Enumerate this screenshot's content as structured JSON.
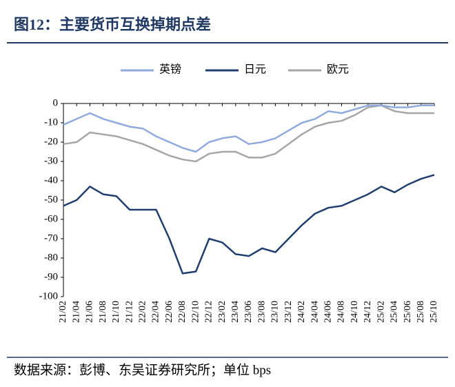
{
  "chart_data": {
    "type": "line",
    "title": "图12：主要货币互换掉期点差",
    "source": "数据来源：彭博、东吴证券研究所；单位 bps",
    "categories": [
      "21/02",
      "21/04",
      "21/06",
      "21/08",
      "21/10",
      "21/12",
      "22/02",
      "22/04",
      "22/06",
      "22/08",
      "22/10",
      "22/12",
      "23/02",
      "23/04",
      "23/06",
      "23/08",
      "23/10",
      "23/12",
      "24/02",
      "24/04",
      "24/06",
      "24/08",
      "24/10",
      "24/12",
      "25/02",
      "25/04",
      "25/06",
      "25/08",
      "25/10"
    ],
    "series": [
      {
        "name": "英镑",
        "color": "#8faadc",
        "values": [
          -11,
          -8,
          -5,
          -8,
          -10,
          -12,
          -13,
          -17,
          -20,
          -23,
          -25,
          -20,
          -18,
          -17,
          -21,
          -20,
          -18,
          -14,
          -10,
          -8,
          -4,
          -5,
          -3,
          -1,
          -1,
          -2,
          -2,
          -1,
          -1
        ]
      },
      {
        "name": "日元",
        "color": "#1f3e6e",
        "values": [
          -53,
          -50,
          -43,
          -47,
          -48,
          -55,
          -55,
          -55,
          -70,
          -88,
          -87,
          -70,
          -72,
          -78,
          -79,
          -75,
          -77,
          -70,
          -63,
          -57,
          -54,
          -53,
          -50,
          -47,
          -43,
          -46,
          -42,
          -39,
          -37
        ]
      },
      {
        "name": "欧元",
        "color": "#a6a6a6",
        "values": [
          -21,
          -20,
          -15,
          -16,
          -17,
          -19,
          -21,
          -24,
          -27,
          -29,
          -30,
          -26,
          -25,
          -25,
          -28,
          -28,
          -26,
          -21,
          -16,
          -12,
          -10,
          -9,
          -6,
          -2,
          -1,
          -4,
          -5,
          -5,
          -5
        ]
      }
    ],
    "ylim": [
      -100,
      0
    ],
    "yticks": [
      0,
      -10,
      -20,
      -30,
      -40,
      -50,
      -60,
      -70,
      -80,
      -90,
      -100
    ]
  }
}
